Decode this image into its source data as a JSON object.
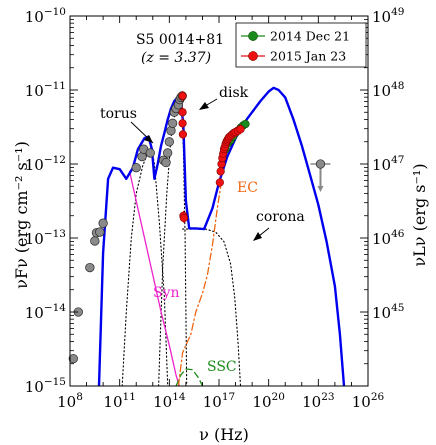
{
  "chart_data": {
    "type": "scatter",
    "title": "S5 0014+81",
    "subtitle": "(z = 3.37)",
    "xlabel": "ν (Hz)",
    "ylabel_left": "νFν (erg cm⁻² s⁻¹)",
    "ylabel_right": "νLν (erg s⁻¹)",
    "x_scale": "log",
    "y_scale": "log",
    "xlim": [
      100000000,
      100000000000000000000000000
    ],
    "ylim": [
      1e-15,
      1e-10
    ],
    "x_ticks": [
      {
        "value": 100000000,
        "label": "10^8"
      },
      {
        "value": 100000000000,
        "label": "10^11"
      },
      {
        "value": 100000000000000,
        "label": "10^14"
      },
      {
        "value": 100000000000000000,
        "label": "10^17"
      },
      {
        "value": 100000000000000000000,
        "label": "10^20"
      },
      {
        "value": 100000000000000000000000,
        "label": "10^23"
      },
      {
        "value": 100000000000000000000000000,
        "label": "10^26"
      }
    ],
    "y_ticks_left": [
      {
        "value": 1e-15,
        "label": "10^-15"
      },
      {
        "value": 1e-14,
        "label": "10^-14"
      },
      {
        "value": 1e-13,
        "label": "10^-13"
      },
      {
        "value": 1e-12,
        "label": "10^-12"
      },
      {
        "value": 1e-11,
        "label": "10^-11"
      },
      {
        "value": 1e-10,
        "label": "10^-10"
      }
    ],
    "y_ticks_right": [
      {
        "value": 1e-14,
        "label": "10^45"
      },
      {
        "value": 1e-13,
        "label": "10^46"
      },
      {
        "value": 1e-12,
        "label": "10^47"
      },
      {
        "value": 1e-11,
        "label": "10^48"
      },
      {
        "value": 1e-10,
        "label": "10^49"
      }
    ],
    "legend": {
      "placement": "top-right",
      "entries": [
        {
          "label": "2014 Dec 21",
          "color": "#1a8a1a"
        },
        {
          "label": "2015 Jan 23",
          "color": "#ee1111"
        }
      ]
    },
    "annotations": [
      {
        "text": "torus",
        "color": "#000000"
      },
      {
        "text": "disk",
        "color": "#000000"
      },
      {
        "text": "corona",
        "color": "#000000"
      },
      {
        "text": "EC",
        "color": "#ee6611"
      },
      {
        "text": "Syn",
        "color": "#ee22cc"
      },
      {
        "text": "SSC",
        "color": "#1a8a1a"
      }
    ],
    "grey_points": {
      "color": "#888888",
      "points": [
        [
          8.2,
          -14.63
        ],
        [
          8.5,
          -14.0
        ],
        [
          9.2,
          -13.4
        ],
        [
          9.5,
          -13.04
        ],
        [
          9.6,
          -12.93
        ],
        [
          9.8,
          -12.92
        ],
        [
          10.0,
          -12.8
        ],
        [
          12.0,
          -12.05
        ],
        [
          12.35,
          -11.9
        ],
        [
          12.45,
          -11.8
        ],
        [
          12.85,
          -11.85
        ],
        [
          13.65,
          -11.95
        ],
        [
          13.8,
          -11.98
        ],
        [
          13.9,
          -11.85
        ],
        [
          14.0,
          -11.7
        ],
        [
          14.1,
          -11.55
        ],
        [
          14.2,
          -11.45
        ],
        [
          14.3,
          -11.3
        ],
        [
          14.4,
          -11.25
        ],
        [
          14.55,
          -11.2
        ],
        [
          14.63,
          -11.13
        ],
        [
          14.7,
          -11.1
        ],
        [
          14.78,
          -11.08
        ],
        [
          23.13,
          -12.0
        ]
      ]
    },
    "series": [
      {
        "name": "2014 Dec 21",
        "color": "#1a8a1a",
        "points": [
          [
            17.4,
            -11.8
          ],
          [
            17.55,
            -11.72
          ],
          [
            17.7,
            -11.68
          ],
          [
            17.85,
            -11.63
          ],
          [
            18.0,
            -11.58
          ],
          [
            18.15,
            -11.55
          ],
          [
            18.3,
            -11.51
          ],
          [
            18.45,
            -11.48
          ],
          [
            18.6,
            -11.46
          ]
        ]
      },
      {
        "name": "2015 Jan 23",
        "color": "#ee1111",
        "points": [
          [
            14.8,
            -11.08
          ],
          [
            14.8,
            -11.3
          ],
          [
            14.8,
            -11.45
          ],
          [
            14.82,
            -11.6
          ],
          [
            14.85,
            -12.7
          ],
          [
            14.88,
            -12.73
          ],
          [
            17.05,
            -12.25
          ],
          [
            17.1,
            -12.1
          ],
          [
            17.15,
            -12.0
          ],
          [
            17.2,
            -11.92
          ],
          [
            17.25,
            -11.86
          ],
          [
            17.3,
            -11.8
          ],
          [
            17.35,
            -11.77
          ],
          [
            17.4,
            -11.73
          ],
          [
            17.45,
            -11.7
          ],
          [
            17.5,
            -11.68
          ],
          [
            17.55,
            -11.66
          ],
          [
            17.6,
            -11.64
          ],
          [
            17.7,
            -11.62
          ],
          [
            17.8,
            -11.6
          ],
          [
            17.9,
            -11.58
          ],
          [
            18.0,
            -11.57
          ],
          [
            18.15,
            -11.55
          ],
          [
            18.3,
            -11.53
          ]
        ]
      }
    ],
    "curves": [
      {
        "name": "total",
        "color": "#0000ee",
        "style": "solid",
        "points": [
          [
            9.75,
            -15.0
          ],
          [
            10.0,
            -13.2
          ],
          [
            10.3,
            -12.2
          ],
          [
            10.6,
            -12.05
          ],
          [
            11.0,
            -12.07
          ],
          [
            11.4,
            -12.2
          ],
          [
            11.8,
            -12.05
          ],
          [
            12.1,
            -11.8
          ],
          [
            12.5,
            -11.65
          ],
          [
            12.75,
            -11.63
          ],
          [
            12.95,
            -11.8
          ],
          [
            13.1,
            -12.2
          ],
          [
            13.3,
            -12.0
          ],
          [
            13.5,
            -11.75
          ],
          [
            13.7,
            -11.58
          ],
          [
            13.9,
            -11.4
          ],
          [
            14.1,
            -11.25
          ],
          [
            14.3,
            -11.15
          ],
          [
            14.5,
            -11.1
          ],
          [
            14.7,
            -11.12
          ],
          [
            14.85,
            -11.5
          ],
          [
            15.0,
            -12.5
          ],
          [
            15.2,
            -12.87
          ],
          [
            15.6,
            -12.87
          ],
          [
            16.1,
            -12.88
          ],
          [
            16.6,
            -12.6
          ],
          [
            17.0,
            -12.25
          ],
          [
            17.5,
            -11.9
          ],
          [
            18.0,
            -11.65
          ],
          [
            18.5,
            -11.45
          ],
          [
            19.0,
            -11.3
          ],
          [
            19.5,
            -11.15
          ],
          [
            20.0,
            -11.02
          ],
          [
            20.3,
            -10.97
          ],
          [
            20.6,
            -11.0
          ],
          [
            21.0,
            -11.1
          ],
          [
            21.5,
            -11.4
          ],
          [
            22.0,
            -11.75
          ],
          [
            22.5,
            -12.15
          ],
          [
            23.0,
            -12.55
          ],
          [
            23.5,
            -13.05
          ],
          [
            24.0,
            -13.65
          ],
          [
            24.3,
            -14.3
          ],
          [
            24.55,
            -15.0
          ]
        ]
      },
      {
        "name": "Syn",
        "color": "#ee22cc",
        "style": "solid",
        "points": [
          [
            11.6,
            -12.1
          ],
          [
            12.0,
            -12.5
          ],
          [
            12.5,
            -13.0
          ],
          [
            13.0,
            -13.5
          ],
          [
            13.5,
            -14.0
          ],
          [
            14.0,
            -14.45
          ],
          [
            14.4,
            -14.85
          ],
          [
            14.6,
            -15.0
          ]
        ]
      },
      {
        "name": "EC",
        "color": "#ee6611",
        "style": "dashdot",
        "points": [
          [
            14.55,
            -15.0
          ],
          [
            14.8,
            -14.55
          ],
          [
            15.0,
            -14.45
          ],
          [
            15.3,
            -14.3
          ],
          [
            15.6,
            -14.0
          ],
          [
            16.0,
            -13.75
          ],
          [
            16.3,
            -13.5
          ],
          [
            16.6,
            -13.1
          ],
          [
            16.9,
            -12.6
          ],
          [
            17.1,
            -12.3
          ]
        ]
      },
      {
        "name": "SSC",
        "color": "#1a8a1a",
        "style": "dashed",
        "points": [
          [
            14.4,
            -15.0
          ],
          [
            14.7,
            -14.85
          ],
          [
            15.0,
            -14.77
          ],
          [
            15.4,
            -14.78
          ],
          [
            15.8,
            -14.9
          ],
          [
            16.0,
            -15.0
          ]
        ]
      },
      {
        "name": "torus",
        "color": "#000000",
        "style": "dotted",
        "points": [
          [
            11.15,
            -15.0
          ],
          [
            11.4,
            -14.0
          ],
          [
            11.7,
            -13.0
          ],
          [
            12.0,
            -12.4
          ],
          [
            12.4,
            -12.02
          ],
          [
            12.7,
            -11.85
          ],
          [
            12.95,
            -11.8
          ],
          [
            13.1,
            -12.0
          ],
          [
            13.4,
            -12.8
          ],
          [
            13.7,
            -13.8
          ],
          [
            13.9,
            -15.0
          ]
        ]
      },
      {
        "name": "disk",
        "color": "#000000",
        "style": "dotted",
        "points": [
          [
            13.35,
            -15.0
          ],
          [
            13.6,
            -13.4
          ],
          [
            13.85,
            -12.4
          ],
          [
            14.1,
            -11.65
          ],
          [
            14.35,
            -11.3
          ],
          [
            14.55,
            -11.15
          ],
          [
            14.72,
            -11.15
          ],
          [
            14.85,
            -11.8
          ],
          [
            14.95,
            -13.0
          ],
          [
            15.05,
            -15.0
          ]
        ]
      },
      {
        "name": "corona",
        "color": "#000000",
        "style": "dotted",
        "points": [
          [
            14.8,
            -12.88
          ],
          [
            15.5,
            -12.88
          ],
          [
            16.2,
            -12.88
          ],
          [
            16.8,
            -12.92
          ],
          [
            17.3,
            -13.05
          ],
          [
            17.7,
            -13.35
          ],
          [
            17.95,
            -13.8
          ],
          [
            18.15,
            -14.4
          ],
          [
            18.3,
            -15.0
          ]
        ]
      }
    ]
  }
}
